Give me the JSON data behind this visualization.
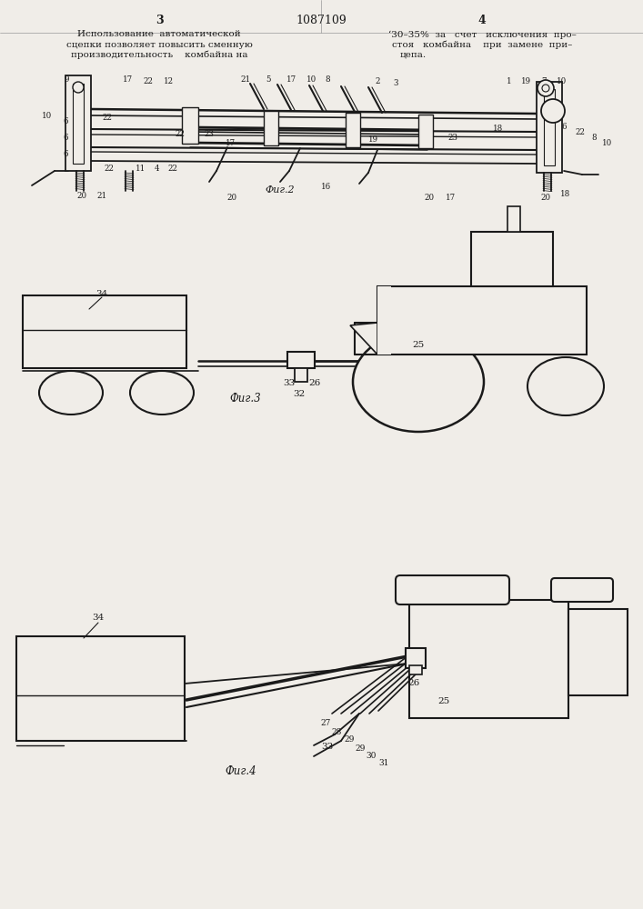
{
  "page_bg": "#f0ede8",
  "lc": "#1a1a1a",
  "tc": "#1a1a1a",
  "fig2_caption": "Фиг.2",
  "fig3_caption": "Фиг.3",
  "fig4_caption": "Фиг.4"
}
